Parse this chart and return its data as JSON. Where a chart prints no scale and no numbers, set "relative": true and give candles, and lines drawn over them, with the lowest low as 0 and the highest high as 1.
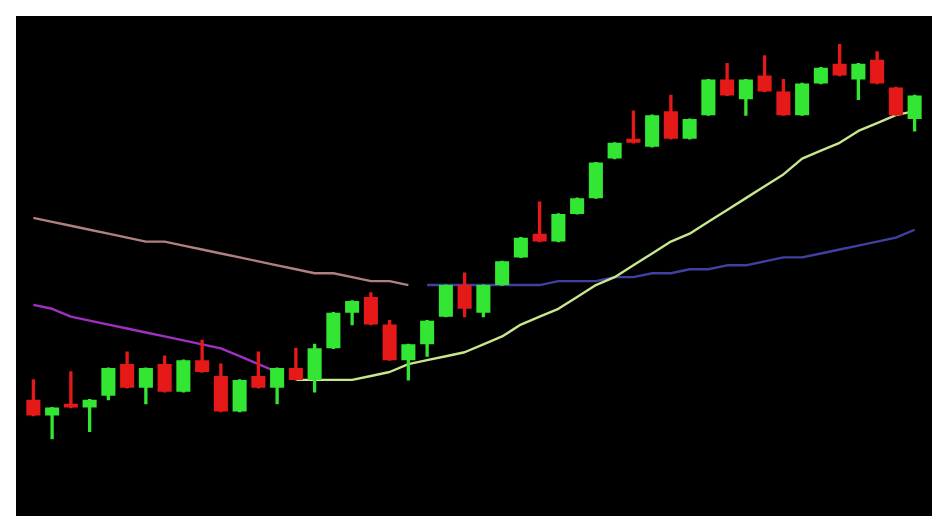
{
  "chart_data": {
    "type": "candlestick",
    "relative": true,
    "grid": false,
    "legend": false,
    "categories": [
      null,
      null,
      null,
      null,
      null,
      null,
      null,
      null,
      null,
      null,
      null,
      null,
      null,
      null,
      null,
      null,
      null,
      null,
      null,
      null,
      null,
      null,
      null,
      null,
      null,
      null,
      null,
      null,
      null,
      null,
      null,
      null,
      null,
      null,
      null,
      null,
      null,
      null,
      null,
      null,
      null,
      null,
      null,
      null,
      null,
      null,
      null,
      null
    ],
    "ohlc": [
      [
        0.1,
        0.15,
        0.06,
        0.06
      ],
      [
        0.06,
        0.08,
        0,
        0.08
      ],
      [
        0.09,
        0.17,
        0.08,
        0.08
      ],
      [
        0.08,
        0.1,
        0.02,
        0.1
      ],
      [
        0.11,
        0.18,
        0.1,
        0.18
      ],
      [
        0.19,
        0.22,
        0.13,
        0.13
      ],
      [
        0.13,
        0.18,
        0.09,
        0.18
      ],
      [
        0.19,
        0.21,
        0.12,
        0.12
      ],
      [
        0.12,
        0.2,
        0.12,
        0.2
      ],
      [
        0.2,
        0.25,
        0.17,
        0.17
      ],
      [
        0.16,
        0.19,
        0.07,
        0.07
      ],
      [
        0.07,
        0.15,
        0.07,
        0.15
      ],
      [
        0.16,
        0.22,
        0.13,
        0.13
      ],
      [
        0.13,
        0.18,
        0.09,
        0.18
      ],
      [
        0.18,
        0.23,
        0.15,
        0.15
      ],
      [
        0.15,
        0.24,
        0.12,
        0.23
      ],
      [
        0.23,
        0.32,
        0.23,
        0.32
      ],
      [
        0.32,
        0.35,
        0.29,
        0.35
      ],
      [
        0.36,
        0.37,
        0.29,
        0.29
      ],
      [
        0.29,
        0.3,
        0.2,
        0.2
      ],
      [
        0.2,
        0.24,
        0.15,
        0.24
      ],
      [
        0.24,
        0.3,
        0.21,
        0.3
      ],
      [
        0.31,
        0.39,
        0.31,
        0.39
      ],
      [
        0.39,
        0.42,
        0.31,
        0.33
      ],
      [
        0.32,
        0.39,
        0.31,
        0.39
      ],
      [
        0.39,
        0.45,
        0.39,
        0.45
      ],
      [
        0.46,
        0.51,
        0.46,
        0.51
      ],
      [
        0.52,
        0.6,
        0.5,
        0.5
      ],
      [
        0.5,
        0.57,
        0.5,
        0.57
      ],
      [
        0.57,
        0.61,
        0.57,
        0.61
      ],
      [
        0.61,
        0.7,
        0.61,
        0.7
      ],
      [
        0.71,
        0.75,
        0.71,
        0.75
      ],
      [
        0.76,
        0.83,
        0.75,
        0.75
      ],
      [
        0.74,
        0.82,
        0.74,
        0.82
      ],
      [
        0.83,
        0.87,
        0.76,
        0.76
      ],
      [
        0.76,
        0.81,
        0.76,
        0.81
      ],
      [
        0.82,
        0.91,
        0.82,
        0.91
      ],
      [
        0.91,
        0.95,
        0.87,
        0.87
      ],
      [
        0.86,
        0.91,
        0.82,
        0.91
      ],
      [
        0.92,
        0.97,
        0.88,
        0.88
      ],
      [
        0.88,
        0.91,
        0.82,
        0.82
      ],
      [
        0.82,
        0.9,
        0.82,
        0.9
      ],
      [
        0.9,
        0.94,
        0.9,
        0.94
      ],
      [
        0.95,
        1,
        0.92,
        0.92
      ],
      [
        0.91,
        0.95,
        0.86,
        0.95
      ],
      [
        0.96,
        0.98,
        0.9,
        0.9
      ],
      [
        0.89,
        0.89,
        0.82,
        0.82
      ],
      [
        0.81,
        0.87,
        0.78,
        0.87
      ]
    ],
    "colors": [
      "#e61919",
      "#33e633",
      "#e61919",
      "#33e633",
      "#33e633",
      "#e61919",
      "#33e633",
      "#e61919",
      "#33e633",
      "#e61919",
      "#e61919",
      "#33e633",
      "#e61919",
      "#33e633",
      "#e61919",
      "#33e633",
      "#33e633",
      "#33e633",
      "#e61919",
      "#e61919",
      "#33e633",
      "#33e633",
      "#33e633",
      "#e61919",
      "#33e633",
      "#33e633",
      "#33e633",
      "#e61919",
      "#33e633",
      "#33e633",
      "#33e633",
      "#33e633",
      "#e61919",
      "#33e633",
      "#e61919",
      "#33e633",
      "#33e633",
      "#e61919",
      "#33e633",
      "#e61919",
      "#e61919",
      "#33e633",
      "#33e633",
      "#e61919",
      "#33e633",
      "#e61919",
      "#e61919",
      "#33e633"
    ],
    "series": [
      {
        "type": "line",
        "color": "#c8e68c",
        "values": [
          null,
          null,
          null,
          null,
          null,
          null,
          null,
          null,
          null,
          null,
          null,
          null,
          null,
          null,
          0.15,
          0.15,
          0.15,
          0.15,
          0.16,
          0.17,
          0.19,
          0.2,
          0.21,
          0.22,
          0.24,
          0.26,
          0.29,
          0.31,
          0.33,
          0.36,
          0.39,
          0.41,
          0.44,
          0.47,
          0.5,
          0.52,
          0.55,
          0.58,
          0.61,
          0.64,
          0.67,
          0.71,
          0.73,
          0.75,
          0.78,
          0.8,
          0.82,
          0.83
        ]
      },
      {
        "type": "line",
        "color": "#a030c0",
        "values": [
          0.34,
          0.33,
          0.31,
          0.3,
          0.29,
          0.28,
          0.27,
          0.26,
          0.25,
          0.24,
          0.23,
          0.21,
          0.19,
          0.17,
          null,
          null,
          null,
          null,
          null,
          null,
          null,
          null,
          null,
          null,
          null,
          null,
          null,
          null,
          null,
          null,
          null,
          null,
          null,
          null,
          null,
          null,
          null,
          null,
          null,
          null,
          null,
          null,
          null,
          null,
          null,
          null,
          null,
          null
        ]
      },
      {
        "type": "line",
        "color": "#b08080",
        "values": [
          0.56,
          0.55,
          0.54,
          0.53,
          0.52,
          0.51,
          0.5,
          0.5,
          0.49,
          0.48,
          0.47,
          0.46,
          0.45,
          0.44,
          0.43,
          0.42,
          0.42,
          0.41,
          0.4,
          0.4,
          0.39,
          null,
          null,
          null,
          null,
          null,
          null,
          null,
          null,
          null,
          null,
          null,
          null,
          null,
          null,
          null,
          null,
          null,
          null,
          null,
          null,
          null,
          null,
          null,
          null,
          null,
          null,
          null
        ]
      },
      {
        "type": "line",
        "color": "#4040a0",
        "values": [
          null,
          null,
          null,
          null,
          null,
          null,
          null,
          null,
          null,
          null,
          null,
          null,
          null,
          null,
          null,
          null,
          null,
          null,
          null,
          null,
          null,
          0.39,
          0.39,
          0.39,
          0.39,
          0.39,
          0.39,
          0.39,
          0.4,
          0.4,
          0.4,
          0.41,
          0.41,
          0.42,
          0.42,
          0.43,
          0.43,
          0.44,
          0.44,
          0.45,
          0.46,
          0.46,
          0.47,
          0.48,
          0.49,
          0.5,
          0.51,
          0.53
        ]
      }
    ]
  }
}
